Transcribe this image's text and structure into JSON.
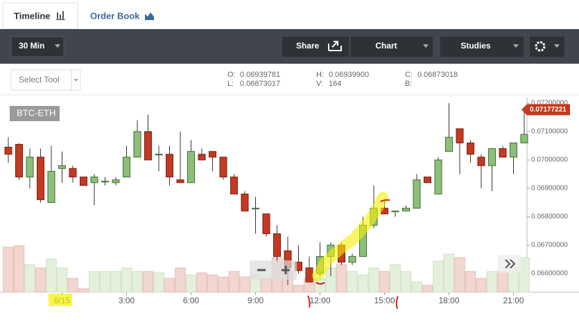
{
  "tabs": [
    "Timeline",
    "Order Book"
  ],
  "toolbar": {
    "interval": "30 Min",
    "share": "Share",
    "chart": "Chart",
    "studies": "Studies"
  },
  "select_tool": "Select Tool",
  "ohlc": [
    {
      "label": "O:",
      "value": "0.06939781"
    },
    {
      "label": "L:",
      "value": "0.06873017"
    },
    {
      "label": "H:",
      "value": "0.06939900"
    },
    {
      "label": "V:",
      "value": "164"
    },
    {
      "label": "C:",
      "value": "0.06873018"
    },
    {
      "label": "B:",
      "value": ""
    }
  ],
  "chart_data": {
    "type": "candlestick",
    "title": "BTC-ETH",
    "last_price": 0.07177221,
    "open": [
      0.07045,
      0.07055,
      0.0694,
      0.0701,
      0.0685,
      0.0697,
      0.0697,
      0.0694,
      0.0692,
      0.06925,
      0.0692,
      0.0694,
      0.0701,
      0.071,
      0.0702,
      0.0702,
      0.0693,
      0.0692,
      0.0702,
      0.0703,
      0.0701,
      0.0694,
      0.0688,
      0.0683,
      0.0681,
      0.0674,
      0.0668,
      0.0664,
      0.0662,
      0.066,
      0.0666,
      0.067,
      0.0664,
      0.0666,
      0.0677,
      0.0683,
      0.0682,
      0.0682,
      0.0683,
      0.0694,
      0.0688,
      0.0703,
      0.0711,
      0.0706,
      0.0701,
      0.0698,
      0.0704,
      0.0701,
      0.0706
    ],
    "high": [
      0.0708,
      0.0706,
      0.0704,
      0.0704,
      0.0705,
      0.0703,
      0.0698,
      0.0694,
      0.0695,
      0.0694,
      0.0694,
      0.0705,
      0.0714,
      0.0716,
      0.0705,
      0.0705,
      0.071,
      0.0707,
      0.0704,
      0.0703,
      0.0701,
      0.0695,
      0.0689,
      0.0687,
      0.0681,
      0.0677,
      0.0673,
      0.067,
      0.0666,
      0.0671,
      0.0671,
      0.0671,
      0.0667,
      0.068,
      0.0691,
      0.0686,
      0.0682,
      0.0684,
      0.0695,
      0.0694,
      0.0701,
      0.072,
      0.0711,
      0.0707,
      0.0702,
      0.0704,
      0.0705,
      0.0706,
      0.0717
    ],
    "low": [
      0.0699,
      0.0693,
      0.069,
      0.0685,
      0.0685,
      0.0692,
      0.0692,
      0.0691,
      0.0684,
      0.0691,
      0.0691,
      0.0694,
      0.0701,
      0.07,
      0.0696,
      0.0691,
      0.0692,
      0.0692,
      0.07,
      0.0696,
      0.0693,
      0.0688,
      0.0682,
      0.0674,
      0.0673,
      0.0664,
      0.0656,
      0.066,
      0.0657,
      0.0659,
      0.0659,
      0.0663,
      0.0663,
      0.0666,
      0.0676,
      0.0681,
      0.068,
      0.0682,
      0.0683,
      0.0692,
      0.0688,
      0.0703,
      0.0695,
      0.0699,
      0.069,
      0.0689,
      0.0701,
      0.0695,
      0.0706
    ],
    "close": [
      0.0702,
      0.0694,
      0.0701,
      0.0686,
      0.0696,
      0.0698,
      0.0694,
      0.0691,
      0.0694,
      0.06925,
      0.0693,
      0.0701,
      0.071,
      0.07,
      0.0702,
      0.0694,
      0.0692,
      0.0703,
      0.07,
      0.0701,
      0.0694,
      0.0688,
      0.0682,
      0.0683,
      0.0674,
      0.0666,
      0.0662,
      0.0661,
      0.0657,
      0.0666,
      0.067,
      0.0664,
      0.0666,
      0.0677,
      0.0683,
      0.0681,
      0.0682,
      0.0683,
      0.0693,
      0.0692,
      0.07,
      0.0708,
      0.0706,
      0.0702,
      0.0698,
      0.0704,
      0.0701,
      0.0706,
      0.0709
    ],
    "volume": [
      65,
      67,
      40,
      35,
      48,
      35,
      20,
      5,
      30,
      30,
      30,
      35,
      30,
      30,
      28,
      20,
      35,
      25,
      28,
      25,
      22,
      30,
      22,
      25,
      20,
      50,
      30,
      10,
      20,
      20,
      35,
      40,
      30,
      25,
      35,
      30,
      40,
      30,
      15,
      10,
      45,
      55,
      50,
      30,
      20,
      30,
      30,
      35,
      50
    ],
    "up_color": "#8cc07a",
    "down_color": "#c23a22",
    "xlim": [
      -0.774,
      48.258
    ],
    "xticks": [
      {
        "value": 5,
        "label": "8/15"
      },
      {
        "value": 11,
        "label": "3:00"
      },
      {
        "value": 17,
        "label": "6:00"
      },
      {
        "value": 23,
        "label": "9:00"
      },
      {
        "value": 29,
        "label": "12:00"
      },
      {
        "value": 35,
        "label": "15:00"
      },
      {
        "value": 41,
        "label": "18:00"
      },
      {
        "value": 47,
        "label": "21:00"
      }
    ],
    "ylim": [
      0.06534,
      0.07222
    ],
    "yticks": [
      {
        "value": 0.066,
        "label": "0.06600000"
      },
      {
        "value": 0.067,
        "label": "0.06700000"
      },
      {
        "value": 0.068,
        "label": "0.06800000"
      },
      {
        "value": 0.069,
        "label": "0.06900000"
      },
      {
        "value": 0.07,
        "label": "0.07000000"
      },
      {
        "value": 0.071,
        "label": "0.07100000"
      },
      {
        "value": 0.072,
        "label": "0.07200000"
      }
    ]
  }
}
